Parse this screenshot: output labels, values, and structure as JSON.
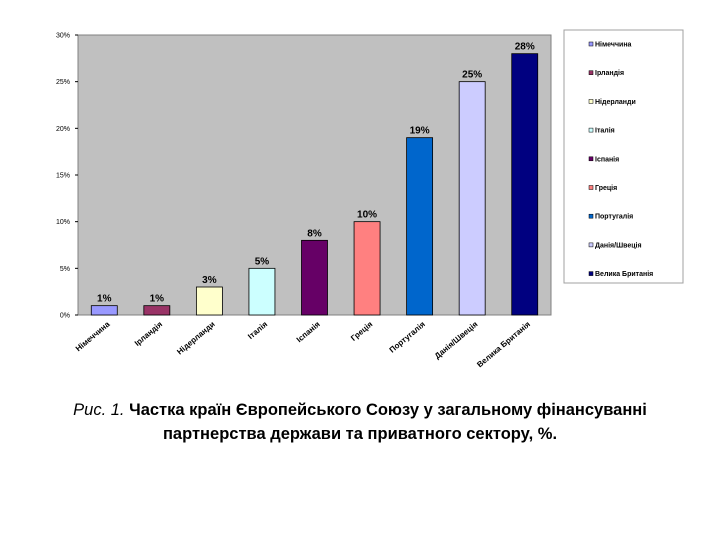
{
  "chart_data": {
    "type": "bar",
    "categories": [
      "Німеччина",
      "Ірландія",
      "Нідерланди",
      "Італія",
      "Іспанія",
      "Греція",
      "Португалія",
      "Данія/Швеція",
      "Велика Британія"
    ],
    "values": [
      1,
      1,
      3,
      5,
      8,
      10,
      19,
      25,
      28
    ],
    "data_labels": [
      "1%",
      "1%",
      "3%",
      "5%",
      "8%",
      "10%",
      "19%",
      "25%",
      "28%"
    ],
    "colors": [
      "#9999ff",
      "#993366",
      "#ffffcc",
      "#ccffff",
      "#660066",
      "#ff8080",
      "#0066cc",
      "#ccccff",
      "#000080"
    ],
    "yticks": [
      "0%",
      "5%",
      "10%",
      "15%",
      "20%",
      "25%",
      "30%"
    ],
    "ylim": [
      0,
      30
    ],
    "plot_background": "#c0c0c0",
    "grid": false,
    "legend": {
      "position": "right",
      "entries": [
        "Німеччина",
        "Ірландія",
        "Нідерланди",
        "Італія",
        "Іспанія",
        "Греція",
        "Португалія",
        "Данія/Швеція",
        "Велика Британія"
      ]
    }
  },
  "caption": {
    "number": "Рис. 1.",
    "text": "Частка країн Європейського Союзу у загальному фінансуванні партнерства держави та приватного сектору, %."
  }
}
